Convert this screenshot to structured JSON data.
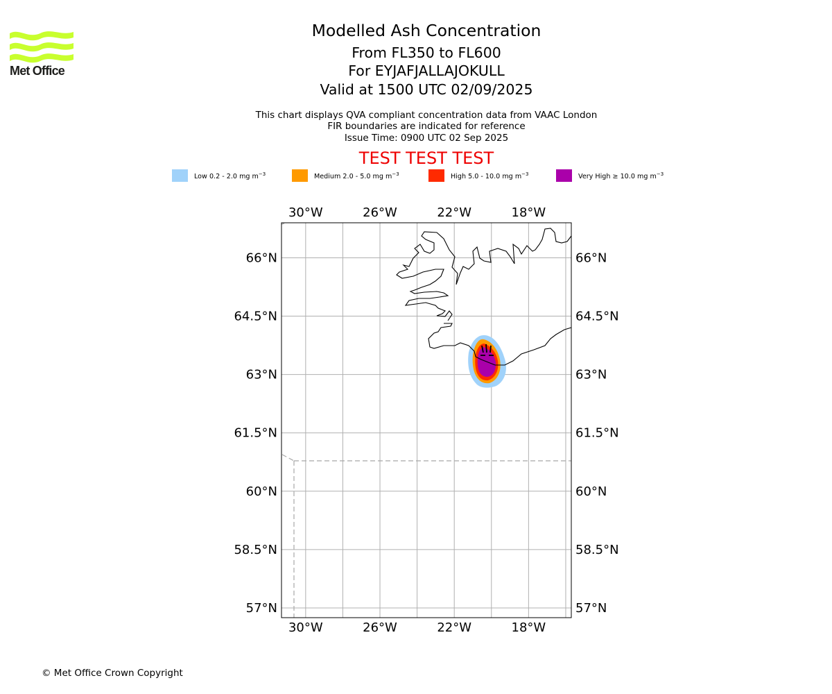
{
  "header": {
    "title": "Modelled Ash Concentration",
    "flight_levels": "From FL350 to FL600",
    "volcano": "For EYJAFJALLAJOKULL",
    "valid_time": "Valid at 1500 UTC 02/09/2025",
    "note_1": "This chart displays QVA compliant concentration data from VAAC London",
    "note_2": "FIR boundaries are indicated for reference",
    "issue_time": "Issue Time: 0900 UTC 02 Sep 2025",
    "test_banner": "TEST TEST TEST"
  },
  "logo": {
    "text": "Met Office",
    "color": "#c8ff2e"
  },
  "legend": [
    {
      "label": "Low 0.2 - 2.0 mg m",
      "exp": "−3",
      "color": "#a0d2fa"
    },
    {
      "label": "Medium 2.0 - 5.0 mg m",
      "exp": "−3",
      "color": "#ff9a00"
    },
    {
      "label": "High 5.0 - 10.0 mg m",
      "exp": "−3",
      "color": "#ff2a00"
    },
    {
      "label": "Very High  ≥  10.0 mg m",
      "exp": "−3",
      "color": "#aa00aa"
    }
  ],
  "map": {
    "lon_range": [
      -31.3,
      -15.7
    ],
    "lat_range": [
      56.75,
      66.9
    ],
    "lon_ticks": [
      -30,
      -26,
      -22,
      -18
    ],
    "lon_labels": [
      "30°W",
      "26°W",
      "22°W",
      "18°W"
    ],
    "lat_ticks": [
      66,
      64.5,
      63,
      61.5,
      60,
      58.5,
      57
    ],
    "lat_labels": [
      "66°N",
      "64.5°N",
      "63°N",
      "61.5°N",
      "60°N",
      "58.5°N",
      "57°N"
    ],
    "gridlines": true
  },
  "footer": {
    "copyright": "© Met Office Crown Copyright"
  }
}
